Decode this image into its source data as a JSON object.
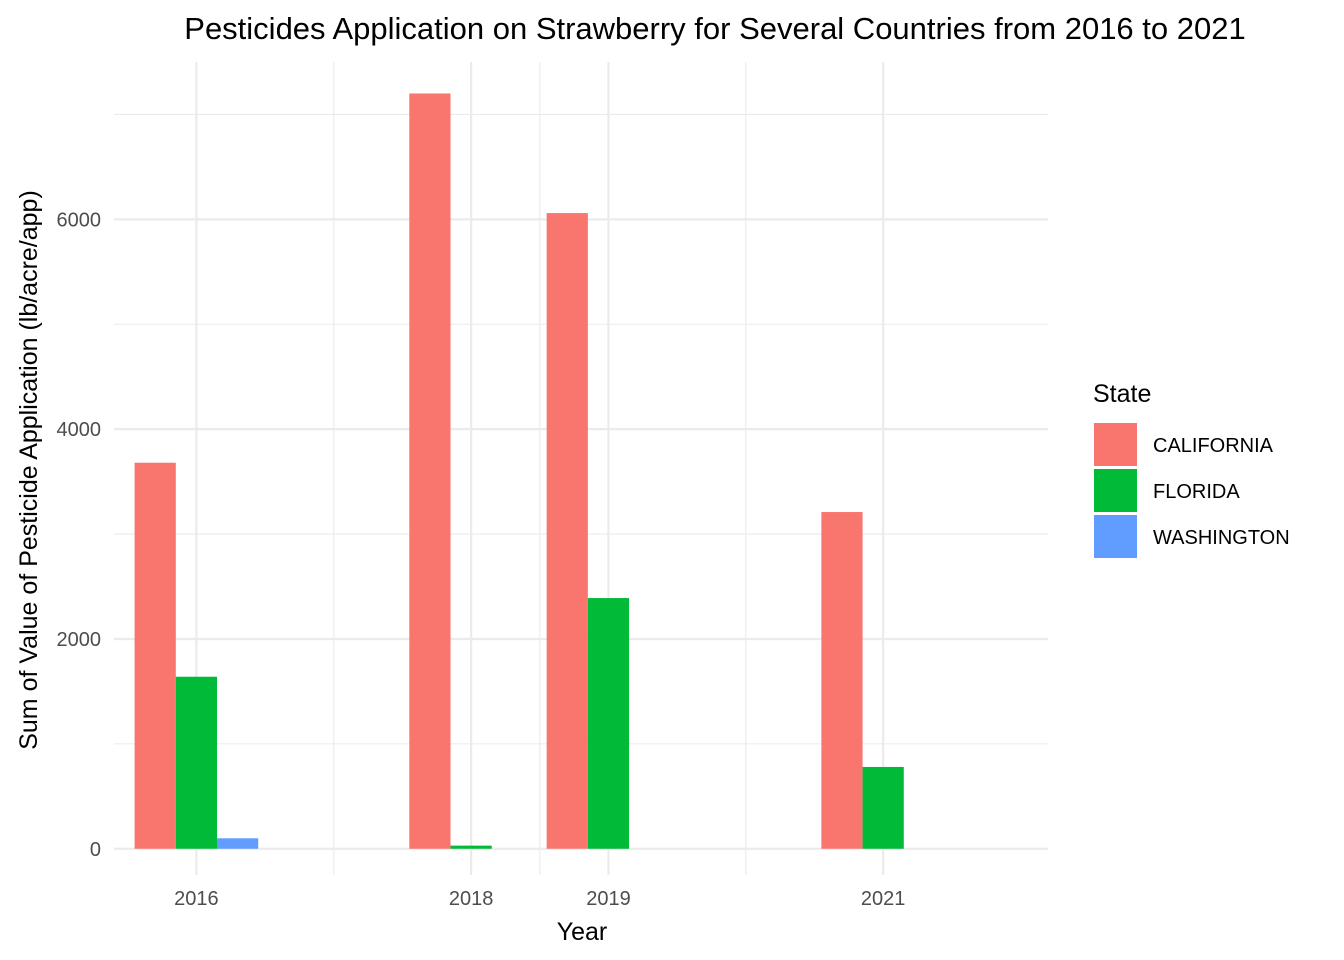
{
  "chart_data": {
    "type": "bar",
    "title": "Pesticides Application on Strawberry for Several Countries from 2016 to 2021",
    "xlabel": "Year",
    "ylabel": "Sum of Value of Pesticide Application (lb/acre/app)",
    "x_ticks": [
      "2016",
      "2018",
      "2019",
      "2021"
    ],
    "y_ticks": [
      "0",
      "2000",
      "4000",
      "6000"
    ],
    "xlim": [
      2015.4,
      2022.2
    ],
    "ylim": [
      -250,
      7500
    ],
    "legend": {
      "title": "State",
      "placement": "right"
    },
    "grid": true,
    "series": [
      {
        "name": "CALIFORNIA",
        "color": "#F8766D",
        "points": [
          {
            "x": 2016,
            "value": 3680
          },
          {
            "x": 2018,
            "value": 7200
          },
          {
            "x": 2019,
            "value": 6060
          },
          {
            "x": 2021,
            "value": 3210
          }
        ]
      },
      {
        "name": "FLORIDA",
        "color": "#00BA38",
        "points": [
          {
            "x": 2016,
            "value": 1640
          },
          {
            "x": 2018,
            "value": 30
          },
          {
            "x": 2019,
            "value": 2390
          },
          {
            "x": 2021,
            "value": 780
          }
        ]
      },
      {
        "name": "WASHINGTON",
        "color": "#619CFF",
        "points": [
          {
            "x": 2016,
            "value": 100
          }
        ]
      }
    ]
  }
}
